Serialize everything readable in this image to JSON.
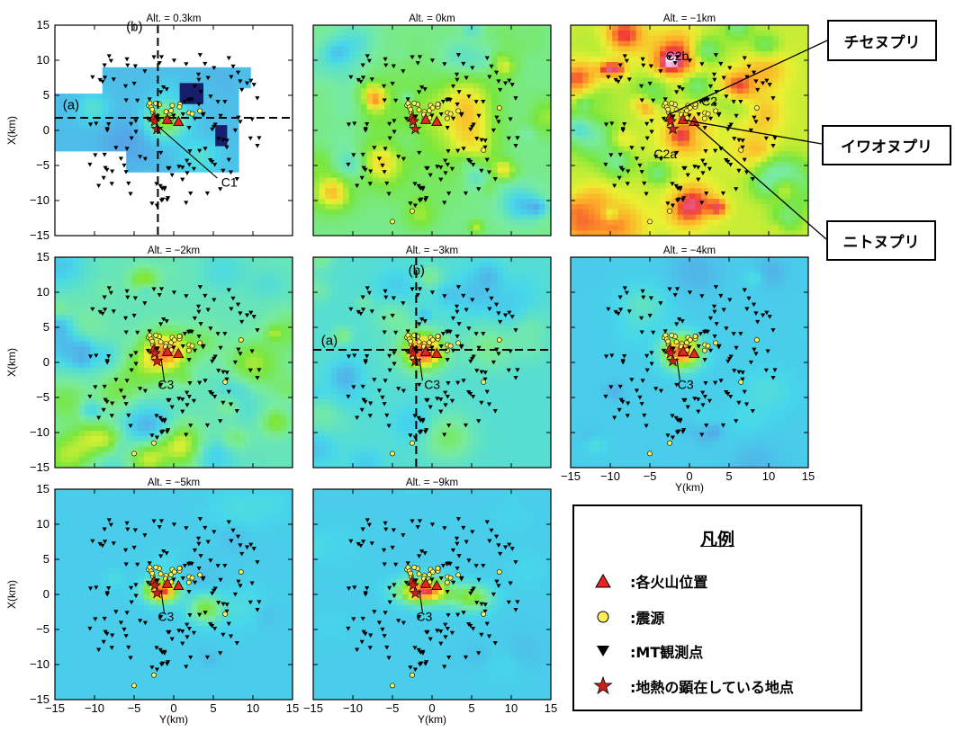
{
  "panels": [
    {
      "title": "Alt. = 0.3km",
      "field": 0,
      "labels": [
        {
          "t": "C1",
          "x": 6,
          "y": -8
        },
        {
          "t": "(a)",
          "x": -14,
          "y": 3
        },
        {
          "t": "(b)",
          "x": -6,
          "y": 14.2
        }
      ],
      "cross": true
    },
    {
      "title": "Alt. = 0km",
      "field": 1,
      "labels": [],
      "cross": false
    },
    {
      "title": "Alt. = −1km",
      "field": 2,
      "labels": [
        {
          "t": "C2b",
          "x": -3,
          "y": 10
        },
        {
          "t": "C2",
          "x": 1.5,
          "y": 3.5
        },
        {
          "t": "C2a",
          "x": -4.5,
          "y": -4
        }
      ],
      "cross": false
    },
    {
      "title": "Alt. = −2km",
      "field": 3,
      "labels": [
        {
          "t": "C3",
          "x": -2,
          "y": -3.8
        }
      ],
      "cross": false
    },
    {
      "title": "Alt. = −3km",
      "field": 4,
      "labels": [
        {
          "t": "C3",
          "x": -1,
          "y": -3.8
        },
        {
          "t": "(a)",
          "x": -14,
          "y": 2.5
        },
        {
          "t": "(b)",
          "x": -3,
          "y": 12.5
        }
      ],
      "cross": true
    },
    {
      "title": "Alt. = −4km",
      "field": 5,
      "labels": [
        {
          "t": "C3",
          "x": -1.5,
          "y": -3.8
        }
      ],
      "cross": false
    },
    {
      "title": "Alt. = −5km",
      "field": 6,
      "labels": [
        {
          "t": "C3",
          "x": -2,
          "y": -3.8
        }
      ],
      "cross": false
    },
    {
      "title": "Alt. = −9km",
      "field": 7,
      "labels": [
        {
          "t": "C3",
          "x": -2,
          "y": -3.8
        }
      ],
      "cross": false
    }
  ],
  "axes": {
    "x_label": "Y(km)",
    "y_label": "X(km)",
    "ticks": [
      -15,
      -10,
      -5,
      0,
      5,
      10,
      15
    ],
    "range": [
      -15,
      15
    ]
  },
  "volcanoes": [
    {
      "name": "チセヌプリ",
      "x": -2.5,
      "y": 1.8
    },
    {
      "name": "イワオヌプリ",
      "x": -0.8,
      "y": 1.5
    },
    {
      "name": "ニトヌプリ",
      "x": 0.6,
      "y": 1.2
    }
  ],
  "geothermal": [
    {
      "x": -2.4,
      "y": 1.3
    },
    {
      "x": -2.1,
      "y": 0.2
    }
  ],
  "callouts": [
    "チセヌプリ",
    "イワオヌプリ",
    "ニトヌプリ"
  ],
  "legend": {
    "title": "凡例",
    "items": [
      {
        "label": ":各火山位置",
        "symbol": "triangle-up"
      },
      {
        "label": ":震源",
        "symbol": "circle"
      },
      {
        "label": ":MT観測点",
        "symbol": "triangle-down"
      },
      {
        "label": ":地熱の顕在している地点",
        "symbol": "star"
      }
    ]
  },
  "colors": {
    "volcano": "#e8261c",
    "hypocenter": "#ffee55",
    "station": "#000000",
    "star": "#c8201a"
  }
}
